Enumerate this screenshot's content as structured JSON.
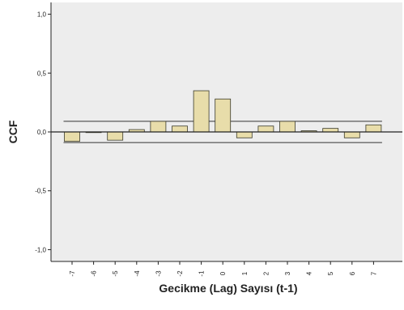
{
  "chart_data": {
    "type": "bar",
    "xlabel": "Gecikme (Lag) Sayısı (t-1)",
    "ylabel": "CCF",
    "ylim": [
      -1.1,
      1.1
    ],
    "yticks": [
      {
        "value": 1.0,
        "label": "1,0"
      },
      {
        "value": 0.5,
        "label": "0,5"
      },
      {
        "value": 0.0,
        "label": "0,0"
      },
      {
        "value": -0.5,
        "label": "-0,5"
      },
      {
        "value": -1.0,
        "label": "-1,0"
      }
    ],
    "categories": [
      "-7",
      "-6",
      "-5",
      "-4",
      "-3",
      "-2",
      "-1",
      "0",
      "1",
      "2",
      "3",
      "4",
      "5",
      "6",
      "7"
    ],
    "values": [
      -0.08,
      0.0,
      -0.07,
      0.02,
      0.09,
      0.05,
      0.35,
      0.28,
      -0.05,
      0.05,
      0.09,
      0.01,
      0.03,
      -0.05,
      0.06
    ],
    "confidence_limits": {
      "upper": 0.09,
      "lower": -0.09
    },
    "grid": false,
    "colors": {
      "bar_fill": "#E8DDAA",
      "bar_stroke": "#3a3a2a",
      "plot_bg": "#EDEDED",
      "axis": "#222222",
      "limit_line": "#333333"
    }
  }
}
